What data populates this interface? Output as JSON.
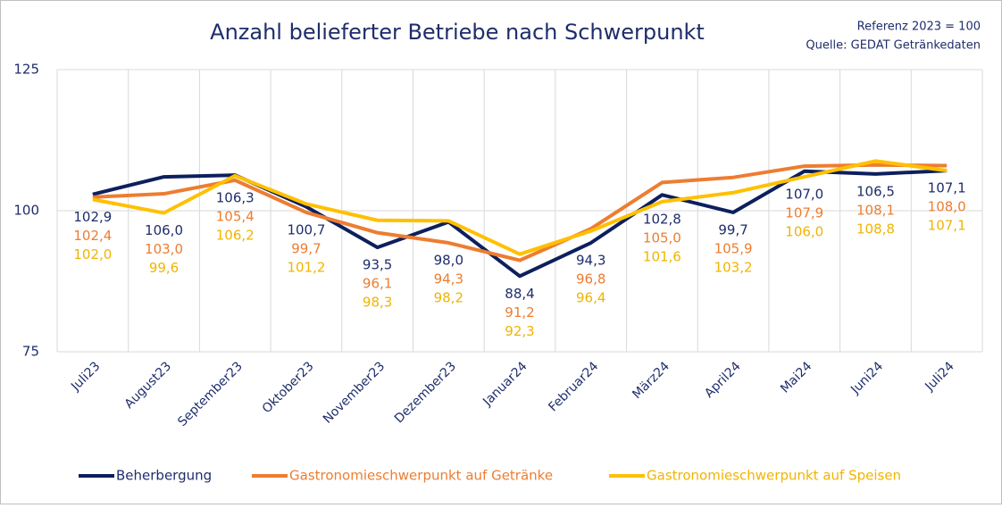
{
  "chart_data": {
    "type": "line",
    "title": "Anzahl belieferter Betriebe nach Schwerpunkt",
    "annotations": [
      "Referenz 2023 = 100",
      "Quelle: GEDAT Getränkedaten"
    ],
    "categories": [
      "Juli23",
      "August23",
      "September23",
      "Oktober23",
      "November23",
      "Dezember23",
      "Januar24",
      "Februar24",
      "März24",
      "April24",
      "Mai24",
      "Juni24",
      "Juli24"
    ],
    "series": [
      {
        "name": "Beherbergung",
        "color": "#0d1f5c",
        "values": [
          102.9,
          106.0,
          106.3,
          100.7,
          93.5,
          98.0,
          88.4,
          94.3,
          102.8,
          99.7,
          107.0,
          106.5,
          107.1
        ],
        "value_labels": [
          "102,9",
          "106,0",
          "106,3",
          "100,7",
          "93,5",
          "98,0",
          "88,4",
          "94,3",
          "102,8",
          "99,7",
          "107,0",
          "106,5",
          "107,1"
        ]
      },
      {
        "name": "Gastronomieschwerpunkt auf Getränke",
        "color": "#ed7d31",
        "values": [
          102.4,
          103.0,
          105.4,
          99.7,
          96.1,
          94.3,
          91.2,
          96.8,
          105.0,
          105.9,
          107.9,
          108.1,
          108.0
        ],
        "value_labels": [
          "102,4",
          "103,0",
          "105,4",
          "99,7",
          "96,1",
          "94,3",
          "91,2",
          "96,8",
          "105,0",
          "105,9",
          "107,9",
          "108,1",
          "108,0"
        ]
      },
      {
        "name": "Gastronomieschwerpunkt auf Speisen",
        "color": "#ffc000",
        "values": [
          102.0,
          99.6,
          106.2,
          101.2,
          98.3,
          98.2,
          92.3,
          96.4,
          101.6,
          103.2,
          106.0,
          108.8,
          107.1
        ],
        "value_labels": [
          "102,0",
          "99,6",
          "106,2",
          "101,2",
          "98,3",
          "98,2",
          "92,3",
          "96,4",
          "101,6",
          "103,2",
          "106,0",
          "108,8",
          "107,1"
        ]
      }
    ],
    "ylim": [
      75,
      125
    ],
    "yticks": [
      75,
      100,
      125
    ],
    "grid": true
  }
}
